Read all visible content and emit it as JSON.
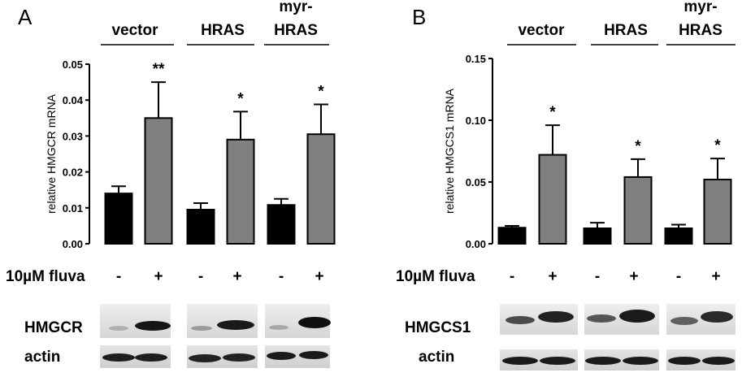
{
  "chart_data": [
    {
      "type": "bar",
      "panel_label": "A",
      "ylabel": "relative HMGCR mRNA",
      "ylim": [
        0,
        0.05
      ],
      "yticks": [
        "0.00",
        "0.01",
        "0.02",
        "0.03",
        "0.04",
        "0.05"
      ],
      "groups": [
        "vector",
        "HRAS",
        "myr-\nHRAS"
      ],
      "treatment_label": "10µM fluva",
      "treatment_ticks": [
        "-",
        "+",
        "-",
        "+",
        "-",
        "+"
      ],
      "bars": [
        {
          "group": "vector",
          "treatment": "-",
          "value": 0.014,
          "error": 0.002,
          "color": "#000000",
          "sig": ""
        },
        {
          "group": "vector",
          "treatment": "+",
          "value": 0.035,
          "error": 0.01,
          "color": "#808080",
          "sig": "**"
        },
        {
          "group": "HRAS",
          "treatment": "-",
          "value": 0.0095,
          "error": 0.0018,
          "color": "#000000",
          "sig": ""
        },
        {
          "group": "HRAS",
          "treatment": "+",
          "value": 0.029,
          "error": 0.0078,
          "color": "#808080",
          "sig": "*"
        },
        {
          "group": "myr-HRAS",
          "treatment": "-",
          "value": 0.0108,
          "error": 0.0017,
          "color": "#000000",
          "sig": ""
        },
        {
          "group": "myr-HRAS",
          "treatment": "+",
          "value": 0.0305,
          "error": 0.0083,
          "color": "#808080",
          "sig": "*"
        }
      ],
      "blots": [
        "HMGCR",
        "actin"
      ]
    },
    {
      "type": "bar",
      "panel_label": "B",
      "ylabel": "relative HMGCS1 mRNA",
      "ylim": [
        0,
        0.15
      ],
      "yticks": [
        "0.00",
        "0.05",
        "0.10",
        "0.15"
      ],
      "groups": [
        "vector",
        "HRAS",
        "myr-\nHRAS"
      ],
      "treatment_label": "10µM fluva",
      "treatment_ticks": [
        "-",
        "+",
        "-",
        "+",
        "-",
        "+"
      ],
      "bars": [
        {
          "group": "vector",
          "treatment": "-",
          "value": 0.013,
          "error": 0.0015,
          "color": "#000000",
          "sig": ""
        },
        {
          "group": "vector",
          "treatment": "+",
          "value": 0.072,
          "error": 0.024,
          "color": "#808080",
          "sig": "*"
        },
        {
          "group": "HRAS",
          "treatment": "-",
          "value": 0.0125,
          "error": 0.0045,
          "color": "#000000",
          "sig": ""
        },
        {
          "group": "HRAS",
          "treatment": "+",
          "value": 0.054,
          "error": 0.0145,
          "color": "#808080",
          "sig": "*"
        },
        {
          "group": "myr-HRAS",
          "treatment": "-",
          "value": 0.0125,
          "error": 0.003,
          "color": "#000000",
          "sig": ""
        },
        {
          "group": "myr-HRAS",
          "treatment": "+",
          "value": 0.052,
          "error": 0.017,
          "color": "#808080",
          "sig": "*"
        }
      ],
      "blots": [
        "HMGCS1",
        "actin"
      ]
    }
  ]
}
